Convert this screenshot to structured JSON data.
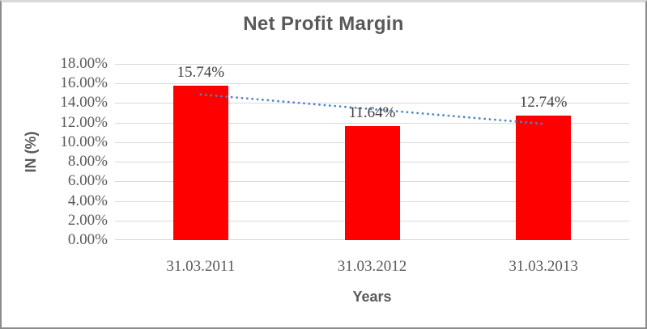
{
  "chart_data": {
    "type": "bar",
    "title": "Net Profit Margin",
    "xlabel": "Years",
    "ylabel": "IN (%)",
    "categories": [
      "31.03.2011",
      "31.03.2012",
      "31.03.2013"
    ],
    "values": [
      15.74,
      11.64,
      12.74
    ],
    "bar_labels": [
      "15.74%",
      "11.64%",
      "12.74%"
    ],
    "ylim": [
      0,
      18
    ],
    "ytick_step": 2,
    "yticks": [
      "0.00%",
      "2.00%",
      "4.00%",
      "6.00%",
      "8.00%",
      "10.00%",
      "12.00%",
      "14.00%",
      "16.00%",
      "18.00%"
    ],
    "grid": true,
    "legend": "none",
    "trendline": {
      "type": "linear",
      "style": "dotted"
    },
    "colors": {
      "bar": "#ff0000",
      "trendline": "#4a86c8",
      "gridline": "#d9d9d9",
      "title_text": "#595959",
      "tick_text": "#595959",
      "data_label_text": "#404040"
    }
  }
}
